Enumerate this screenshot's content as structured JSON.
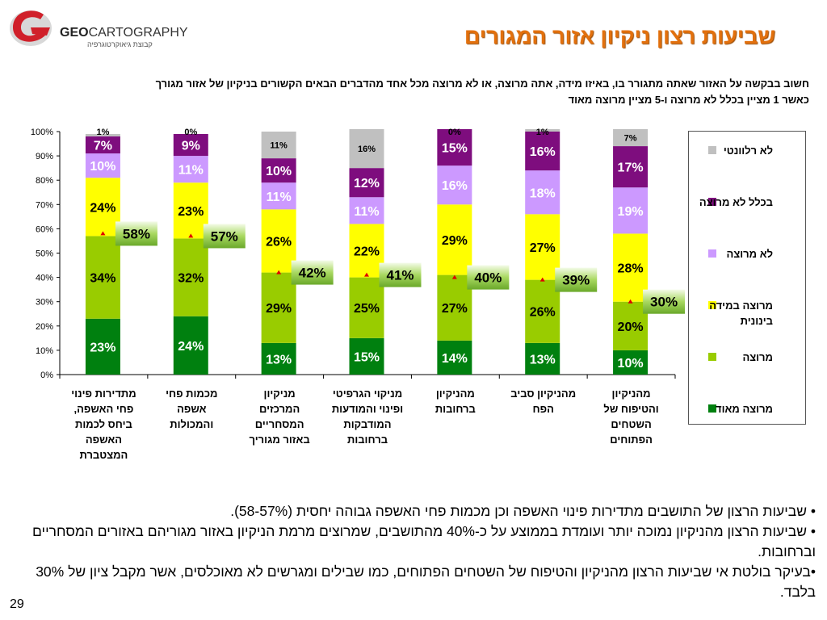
{
  "header": {
    "logo_brand_bold": "GEO",
    "logo_brand_rest": "CARTOGRAPHY",
    "logo_subtitle": "קבוצת גיאוקרטוגרפיה",
    "title": "שביעות רצון ניקיון אזור המגורים",
    "question_line1": "חשוב בבקשה על האזור שאתה מתגורר בו, באיזו מידה, אתה מרוצה, או לא מרוצה מכל אחד מהדברים הבאים הקשורים בניקיון של אזור מגורך",
    "question_line2": "כאשר 1 מציין בכלל לא מרוצה ו-5 מציין מרוצה מאוד"
  },
  "legend": [
    {
      "label": "לא רלוונטי",
      "color": "#c0c0c0"
    },
    {
      "label": "בכלל לא מרוצה",
      "color": "#7e0d7e"
    },
    {
      "label": "לא מרוצה",
      "color": "#cc99ff"
    },
    {
      "label": "מרוצה במידה בינונית",
      "color": "#ffff00"
    },
    {
      "label": "מרוצה",
      "color": "#99cc00"
    },
    {
      "label": "מרוצה מאוד",
      "color": "#00800f"
    }
  ],
  "chart_data": {
    "type": "bar",
    "stacked": true,
    "ylim": [
      0,
      100
    ],
    "y_ticks": [
      "0%",
      "10%",
      "20%",
      "30%",
      "40%",
      "50%",
      "60%",
      "70%",
      "80%",
      "90%",
      "100%"
    ],
    "categories": [
      [
        "מתדירות פינוי",
        "פחי האשפה,",
        "ביחס לכמות",
        "האשפה",
        "המצטברת"
      ],
      [
        "מכמות פחי",
        "אשפה",
        "והמכולות"
      ],
      [
        "מניקיון",
        "המרכזים",
        "המסחריים",
        "באזור מגוריך"
      ],
      [
        "מניקוי הגרפיטי",
        "ופינוי והמודעות",
        "המודבקות",
        "ברחובות"
      ],
      [
        "מהניקיון",
        "ברחובות"
      ],
      [
        "מהניקיון סביב",
        "הפח"
      ],
      [
        "מהניקיון",
        "והטיפוח של",
        "השטחים",
        "הפתוחים"
      ]
    ],
    "series": [
      {
        "name": "מרוצה מאוד",
        "color": "#00800f",
        "values": [
          23,
          24,
          13,
          15,
          14,
          13,
          10
        ],
        "labels": [
          "23%",
          "24%",
          "13%",
          "15%",
          "14%",
          "13%",
          "10%"
        ],
        "label_color": "#ffffff"
      },
      {
        "name": "מרוצה",
        "color": "#99cc00",
        "values": [
          34,
          32,
          29,
          25,
          27,
          26,
          20
        ],
        "labels": [
          "34%",
          "32%",
          "29%",
          "25%",
          "27%",
          "26%",
          "20%"
        ],
        "label_color": "#000000"
      },
      {
        "name": "מרוצה במידה בינונית",
        "color": "#ffff00",
        "values": [
          24,
          23,
          26,
          22,
          29,
          27,
          28
        ],
        "labels": [
          "24%",
          "23%",
          "26%",
          "22%",
          "29%",
          "27%",
          "28%"
        ],
        "label_color": "#000000"
      },
      {
        "name": "לא מרוצה",
        "color": "#cc99ff",
        "values": [
          10,
          11,
          11,
          11,
          16,
          18,
          19
        ],
        "labels": [
          "10%",
          "11%",
          "11%",
          "11%",
          "16%",
          "18%",
          "19%"
        ],
        "label_color": "#ffffff"
      },
      {
        "name": "בכלל לא מרוצה",
        "color": "#7e0d7e",
        "values": [
          7,
          9,
          10,
          12,
          15,
          16,
          17
        ],
        "labels": [
          "7%",
          "9%",
          "10%",
          "12%",
          "15%",
          "16%",
          "17%"
        ],
        "label_color": "#ffffff"
      },
      {
        "name": "לא רלוונטי",
        "color": "#c0c0c0",
        "values": [
          1,
          0,
          11,
          16,
          0,
          1,
          7
        ],
        "labels": [
          "1%",
          "0%",
          "11%",
          "16%",
          "0%",
          "1%",
          "7%"
        ],
        "label_color": "#000000"
      }
    ],
    "satisfied_totals": {
      "values": [
        58,
        57,
        42,
        41,
        40,
        39,
        30
      ],
      "labels": [
        "58%",
        "57%",
        "42%",
        "41%",
        "40%",
        "39%",
        "30%"
      ]
    }
  },
  "bullets": [
    "•  שביעות הרצון של התושבים מתדירות פינוי האשפה וכן מכמות פחי האשפה גבוהה יחסית (58-57%).",
    "• שביעות הרצון מהניקיון נמוכה יותר ועומדת בממוצע על כ-40% מהתושבים, שמרוצים מרמת הניקיון באזור מגוריהם באזורים המסחריים וברחובות.",
    "•בעיקר בולטת אי שביעות הרצון מהניקיון והטיפוח של השטחים הפתוחים, כמו שבילים ומגרשים לא מאוכלסים, אשר מקבל ציון של 30% בלבד."
  ],
  "page_number": "29"
}
